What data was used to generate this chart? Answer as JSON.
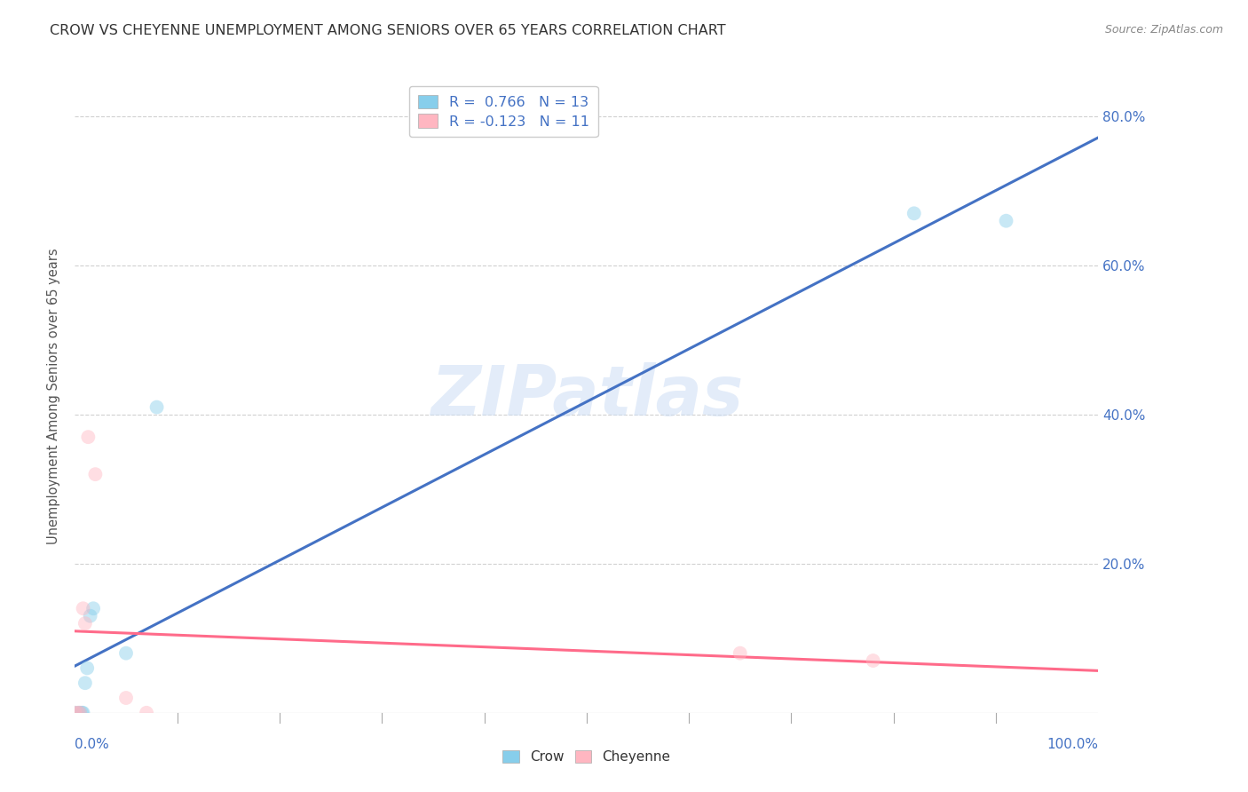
{
  "title": "CROW VS CHEYENNE UNEMPLOYMENT AMONG SENIORS OVER 65 YEARS CORRELATION CHART",
  "source": "Source: ZipAtlas.com",
  "ylabel": "Unemployment Among Seniors over 65 years",
  "crow_points": [
    [
      0.0,
      0.0
    ],
    [
      0.003,
      0.0
    ],
    [
      0.005,
      0.0
    ],
    [
      0.007,
      0.0
    ],
    [
      0.008,
      0.0
    ],
    [
      0.01,
      0.04
    ],
    [
      0.012,
      0.06
    ],
    [
      0.015,
      0.13
    ],
    [
      0.018,
      0.14
    ],
    [
      0.05,
      0.08
    ],
    [
      0.08,
      0.41
    ],
    [
      0.82,
      0.67
    ],
    [
      0.91,
      0.66
    ]
  ],
  "cheyenne_points": [
    [
      0.0,
      0.0
    ],
    [
      0.003,
      0.0
    ],
    [
      0.005,
      0.0
    ],
    [
      0.008,
      0.14
    ],
    [
      0.01,
      0.12
    ],
    [
      0.013,
      0.37
    ],
    [
      0.02,
      0.32
    ],
    [
      0.05,
      0.02
    ],
    [
      0.07,
      0.0
    ],
    [
      0.65,
      0.08
    ],
    [
      0.78,
      0.07
    ]
  ],
  "crow_R": 0.766,
  "crow_N": 13,
  "cheyenne_R": -0.123,
  "cheyenne_N": 11,
  "crow_color": "#87CEEB",
  "crow_line_color": "#4472C4",
  "cheyenne_color": "#FFB6C1",
  "cheyenne_line_color": "#FF6B8A",
  "xlim": [
    0.0,
    1.0
  ],
  "ylim": [
    0.0,
    0.85
  ],
  "ytick_positions": [
    0.2,
    0.4,
    0.6,
    0.8
  ],
  "ytick_labels": [
    "20.0%",
    "40.0%",
    "60.0%",
    "80.0%"
  ],
  "background_color": "#ffffff",
  "grid_color": "#cccccc",
  "title_color": "#333333",
  "marker_size": 130,
  "marker_alpha": 0.45,
  "line_width": 2.2
}
